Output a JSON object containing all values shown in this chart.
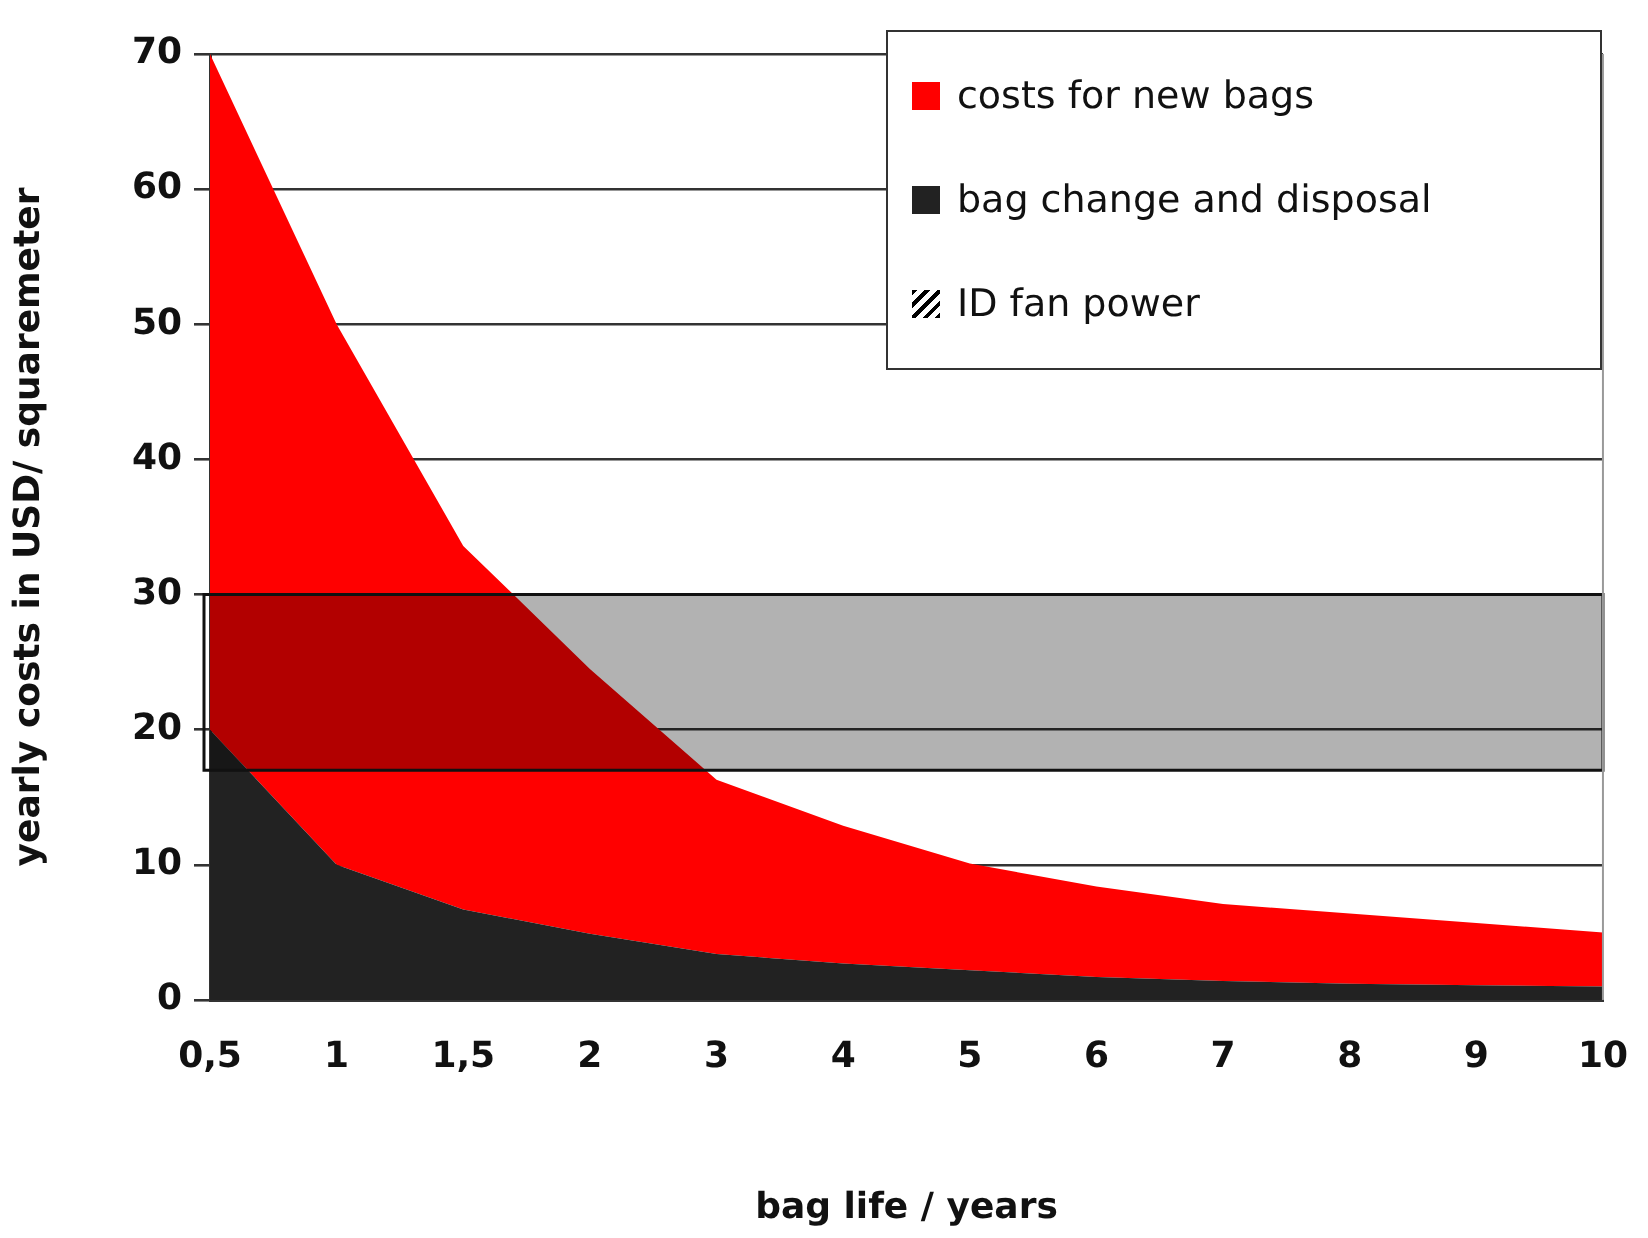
{
  "chart_data": {
    "type": "area",
    "xlabel": "bag life / years",
    "ylabel": "yearly costs in USD/ squaremeter",
    "categories": [
      "0,5",
      "1",
      "1,5",
      "2",
      "3",
      "4",
      "5",
      "6",
      "7",
      "8",
      "9",
      "10"
    ],
    "stacked": true,
    "series": [
      {
        "name": "bag change and disposal",
        "color": "#222222",
        "values": [
          20,
          10,
          6.7,
          4.9,
          3.4,
          2.7,
          2.2,
          1.7,
          1.4,
          1.2,
          1.1,
          1.0
        ]
      },
      {
        "name": "costs for new bags",
        "color": "#ff0000",
        "values": [
          50,
          40,
          26.9,
          19.6,
          12.9,
          10.2,
          7.9,
          6.7,
          5.7,
          5.2,
          4.6,
          4.0
        ]
      }
    ],
    "ylim": [
      0,
      70
    ],
    "yticks": [
      0,
      10,
      20,
      30,
      40,
      50,
      60,
      70
    ],
    "grid": "y",
    "legend": "top right",
    "bands": [
      {
        "axis": "y",
        "from": 17,
        "to": 30,
        "label": "ID fan power",
        "color": "#000000"
      }
    ]
  }
}
